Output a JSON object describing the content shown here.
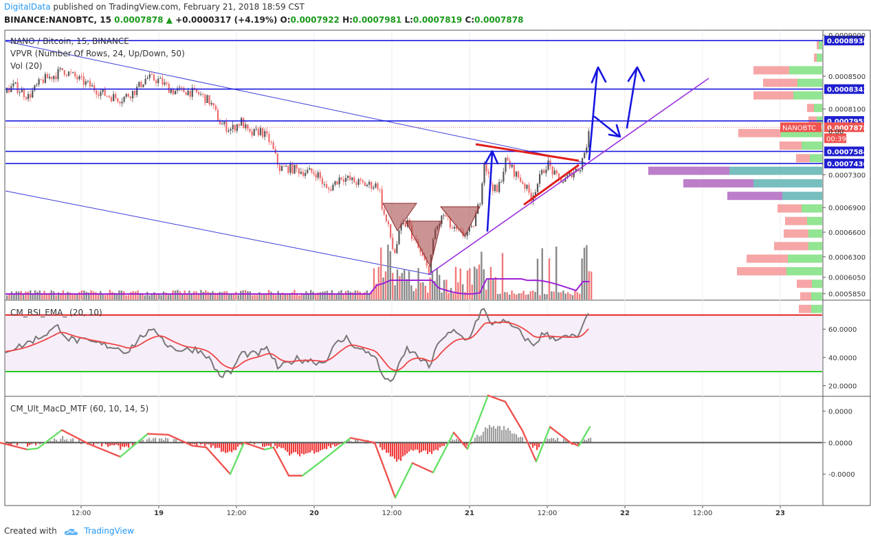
{
  "header": {
    "brand": "DigitalData",
    "published": "published on TradingView.com, February 21, 2018 18:59 CST"
  },
  "ohlc": {
    "symbol": "BINANCE:NANOBTC, 15",
    "last": "0.0007878",
    "change": "+0.0000317 (+4.19%)",
    "o_label": "O:",
    "o": "0.0007922",
    "h_label": "H:",
    "h": "0.0007981",
    "l_label": "L:",
    "l": "0.0007819",
    "c_label": "C:",
    "c": "0.0007878"
  },
  "footer": {
    "created": "Created with",
    "brand": "TradingView"
  },
  "colors": {
    "level_line": "#1a1adf",
    "up": "#6fdf6f",
    "down": "#ef5350",
    "vol_up": "#888888",
    "vol_down": "#ef7a7a",
    "ma": "#9c1fd6",
    "rsi_line": "#777777",
    "rsi_ema": "#ef4444",
    "rsi_upper": "#e22222",
    "rsi_lower": "#22cc22",
    "macd_up": "#66e066",
    "macd_down": "#ef5350",
    "trend": "#9b30e0"
  },
  "chart_data": [
    {
      "type": "candlestick",
      "title": "NANO / Bitcoin, 15, BINANCE",
      "indicators": [
        "VPVR (Number Of Rows, 24, Up/Down, 50)",
        "Vol (20)"
      ],
      "x_tick_labels": [
        "12:00",
        "19",
        "12:00",
        "20",
        "12:00",
        "21",
        "12:00",
        "22",
        "12:00",
        "23"
      ],
      "y_tick_labels": [
        "0.0009000",
        "0.0008500",
        "0.0008100",
        "0.0007300",
        "0.0006900",
        "0.0006600",
        "0.0006300",
        "0.0006050",
        "0.0005850"
      ],
      "y_tick_values": [
        0.0009,
        0.00085,
        0.00081,
        0.00073,
        0.00069,
        0.00066,
        0.00063,
        0.000605,
        0.000585
      ],
      "ylim": [
        0.000578,
        0.000906
      ],
      "price_lines": [
        {
          "label": "0.0008934",
          "value": 0.0008934
        },
        {
          "label": "0.0008343",
          "value": 0.0008343
        },
        {
          "label": "0.0007955",
          "value": 0.0007955
        },
        {
          "label": "0.0007584",
          "value": 0.0007584
        },
        {
          "label": "0.0007436",
          "value": 0.0007436
        }
      ],
      "last_price": {
        "symbol": "NANOBTC",
        "label": "0.0007878",
        "value": 0.0007878,
        "countdown": "00:39"
      },
      "close_path": [
        [
          0,
          0.00083
        ],
        [
          20,
          0.000838
        ],
        [
          40,
          0.000825
        ],
        [
          60,
          0.000845
        ],
        [
          80,
          0.000852
        ],
        [
          90,
          0.000858
        ],
        [
          110,
          0.000848
        ],
        [
          130,
          0.000838
        ],
        [
          150,
          0.000828
        ],
        [
          175,
          0.000822
        ],
        [
          195,
          0.000832
        ],
        [
          212,
          0.000848
        ],
        [
          230,
          0.000845
        ],
        [
          250,
          0.000832
        ],
        [
          270,
          0.000832
        ],
        [
          290,
          0.000828
        ],
        [
          305,
          0.000818
        ],
        [
          320,
          0.000792
        ],
        [
          335,
          0.000785
        ],
        [
          350,
          0.000795
        ],
        [
          362,
          0.000778
        ],
        [
          378,
          0.000784
        ],
        [
          392,
          0.00077
        ],
        [
          405,
          0.000738
        ],
        [
          420,
          0.000738
        ],
        [
          440,
          0.000734
        ],
        [
          460,
          0.000732
        ],
        [
          475,
          0.00071
        ],
        [
          495,
          0.000728
        ],
        [
          512,
          0.000722
        ],
        [
          530,
          0.000718
        ],
        [
          550,
          0.000717
        ],
        [
          556,
          0.000685
        ],
        [
          565,
          0.000662
        ],
        [
          572,
          0.000632
        ],
        [
          582,
          0.000665
        ],
        [
          592,
          0.000672
        ],
        [
          600,
          0.000652
        ],
        [
          612,
          0.000632
        ],
        [
          622,
          0.000612
        ],
        [
          632,
          0.000662
        ],
        [
          645,
          0.000682
        ],
        [
          655,
          0.000665
        ],
        [
          670,
          0.000656
        ],
        [
          685,
          0.000662
        ],
        [
          697,
          0.000698
        ],
        [
          703,
          0.000748
        ],
        [
          712,
          0.00072
        ],
        [
          722,
          0.000708
        ],
        [
          735,
          0.000748
        ],
        [
          748,
          0.000732
        ],
        [
          760,
          0.00072
        ],
        [
          772,
          0.000702
        ],
        [
          782,
          0.000722
        ],
        [
          795,
          0.000745
        ],
        [
          808,
          0.000726
        ],
        [
          820,
          0.000722
        ],
        [
          832,
          0.000734
        ],
        [
          842,
          0.000738
        ],
        [
          850,
          0.00076
        ],
        [
          858,
          0.000787
        ]
      ],
      "vpvr_rows": [
        {
          "price": 0.0008878,
          "up": 5,
          "down": 3
        },
        {
          "price": 0.0008725,
          "up": 8,
          "down": 4
        },
        {
          "price": 0.0008572,
          "up": 48,
          "down": 52
        },
        {
          "price": 0.0008419,
          "up": 36,
          "down": 50
        },
        {
          "price": 0.0008266,
          "up": 42,
          "down": 58
        },
        {
          "price": 0.0008113,
          "up": 12,
          "down": 10
        },
        {
          "price": 0.000796,
          "up": 8,
          "down": 12
        },
        {
          "price": 0.0007807,
          "up": 60,
          "down": 62
        },
        {
          "price": 0.0007654,
          "up": 30,
          "down": 32
        },
        {
          "price": 0.0007501,
          "up": 18,
          "down": 20
        },
        {
          "price": 0.0007348,
          "up": 135,
          "down": 118
        },
        {
          "price": 0.0007195,
          "up": 100,
          "down": 102
        },
        {
          "price": 0.0007042,
          "up": 58,
          "down": 80
        },
        {
          "price": 0.0006889,
          "up": 30,
          "down": 35
        },
        {
          "price": 0.0006736,
          "up": 22,
          "down": 32
        },
        {
          "price": 0.0006583,
          "up": 20,
          "down": 36
        },
        {
          "price": 0.000643,
          "up": 20,
          "down": 50
        },
        {
          "price": 0.0006277,
          "up": 50,
          "down": 60
        },
        {
          "price": 0.0006124,
          "up": 52,
          "down": 72
        },
        {
          "price": 0.0005971,
          "up": 15,
          "down": 22
        },
        {
          "price": 0.0005818,
          "up": 16,
          "down": 16
        },
        {
          "price": 0.0005665,
          "up": 16,
          "down": 18
        }
      ]
    },
    {
      "type": "line",
      "title": "CM_RSI_EMA_ (20, 10)",
      "y_tick_labels": [
        "60.0000",
        "40.0000",
        "20.0000"
      ],
      "y_tick_values": [
        60,
        40,
        20
      ],
      "ylim": [
        13,
        80
      ],
      "levels": [
        70,
        30
      ],
      "series_path": [
        [
          0,
          44
        ],
        [
          30,
          48
        ],
        [
          60,
          55
        ],
        [
          85,
          62
        ],
        [
          100,
          53
        ],
        [
          140,
          50
        ],
        [
          170,
          47
        ],
        [
          185,
          44
        ],
        [
          210,
          57
        ],
        [
          230,
          58
        ],
        [
          245,
          48
        ],
        [
          265,
          45
        ],
        [
          285,
          46
        ],
        [
          300,
          42
        ],
        [
          320,
          27
        ],
        [
          338,
          30
        ],
        [
          350,
          43
        ],
        [
          372,
          42
        ],
        [
          390,
          46
        ],
        [
          405,
          32
        ],
        [
          430,
          39
        ],
        [
          450,
          38
        ],
        [
          470,
          36
        ],
        [
          490,
          50
        ],
        [
          505,
          54
        ],
        [
          520,
          46
        ],
        [
          545,
          42
        ],
        [
          553,
          30
        ],
        [
          565,
          22
        ],
        [
          575,
          28
        ],
        [
          592,
          46
        ],
        [
          610,
          40
        ],
        [
          625,
          33
        ],
        [
          640,
          53
        ],
        [
          660,
          58
        ],
        [
          680,
          52
        ],
        [
          695,
          68
        ],
        [
          703,
          75
        ],
        [
          712,
          64
        ],
        [
          728,
          66
        ],
        [
          745,
          62
        ],
        [
          760,
          56
        ],
        [
          775,
          48
        ],
        [
          790,
          57
        ],
        [
          805,
          54
        ],
        [
          825,
          54
        ],
        [
          842,
          55
        ],
        [
          852,
          66
        ],
        [
          858,
          73
        ]
      ]
    },
    {
      "type": "line",
      "title": "CM_Ult_MacD_MTF (60, 10, 14, 5)",
      "y_tick_labels": [
        "0.0000",
        "0.0000",
        "-0.0000"
      ],
      "y_tick_values": [
        1,
        0,
        -1
      ],
      "ylim": [
        -2,
        1.45
      ],
      "macd_path": [
        [
          0,
          0
        ],
        [
          40,
          -0.22
        ],
        [
          55,
          -0.18
        ],
        [
          90,
          0.4
        ],
        [
          130,
          -0.05
        ],
        [
          175,
          -0.45
        ],
        [
          215,
          0.28
        ],
        [
          245,
          0.25
        ],
        [
          280,
          -0.1
        ],
        [
          300,
          -0.15
        ],
        [
          335,
          -1.0
        ],
        [
          355,
          0.0
        ],
        [
          385,
          -0.22
        ],
        [
          398,
          -0.15
        ],
        [
          420,
          -1.05
        ],
        [
          440,
          -1.05
        ],
        [
          470,
          -0.55
        ],
        [
          510,
          0.15
        ],
        [
          545,
          0.0
        ],
        [
          575,
          -1.75
        ],
        [
          600,
          -0.65
        ],
        [
          630,
          -0.95
        ],
        [
          660,
          0.32
        ],
        [
          680,
          -0.2
        ],
        [
          710,
          1.5
        ],
        [
          735,
          1.3
        ],
        [
          760,
          0.38
        ],
        [
          780,
          -0.6
        ],
        [
          800,
          0.5
        ],
        [
          830,
          0.0
        ],
        [
          842,
          -0.1
        ],
        [
          858,
          0.5
        ]
      ]
    }
  ]
}
